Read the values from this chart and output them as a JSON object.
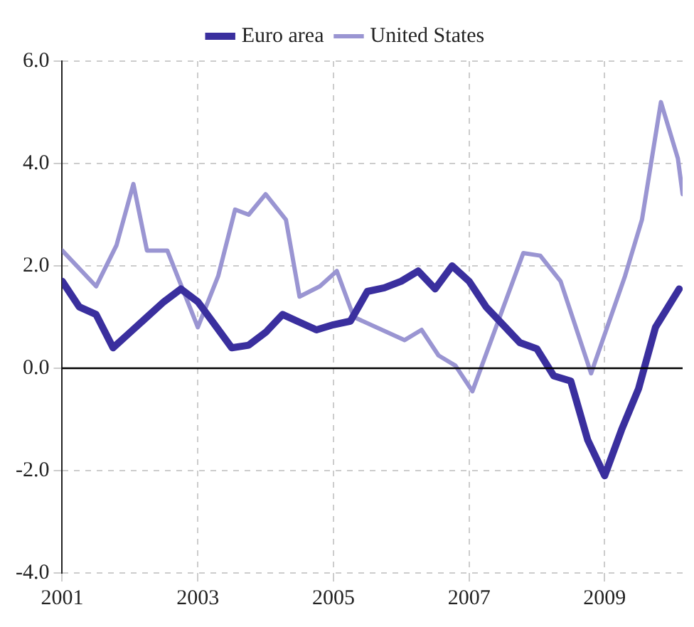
{
  "chart_data": {
    "type": "line",
    "legend": "top",
    "grid": true,
    "marker": "none",
    "line_style": "solid",
    "xlim": [
      2001,
      2010.15
    ],
    "xticks": [
      2001,
      2003,
      2005,
      2007,
      2009
    ],
    "ylim": [
      -4,
      6
    ],
    "yticks": [
      {
        "value": -4,
        "label": "-4.0"
      },
      {
        "value": -2,
        "label": "-2.0"
      },
      {
        "value": 0,
        "label": "0.0"
      },
      {
        "value": 2,
        "label": "2.0"
      },
      {
        "value": 4,
        "label": "4.0"
      },
      {
        "value": 6,
        "label": "6.0"
      }
    ],
    "ref_lines": [
      {
        "axis": "y",
        "value": 0,
        "color": "#000000"
      }
    ],
    "series": [
      {
        "name": "Euro area",
        "color": "#3a2f9e",
        "x": [
          2001,
          2001.25,
          2001.5,
          2001.75,
          2002,
          2002.25,
          2002.5,
          2002.75,
          2003,
          2003.25,
          2003.5,
          2003.75,
          2004,
          2004.25,
          2004.5,
          2004.75,
          2005,
          2005.25,
          2005.5,
          2005.75,
          2006,
          2006.25,
          2006.5,
          2006.75,
          2007,
          2007.25,
          2007.5,
          2007.75,
          2008,
          2008.25,
          2008.5,
          2008.75,
          2009,
          2009.25,
          2009.5,
          2009.75,
          2010.1
        ],
        "values": [
          1.7,
          1.2,
          1.05,
          0.4,
          0.7,
          1.0,
          1.3,
          1.55,
          1.3,
          0.85,
          0.4,
          0.45,
          0.7,
          1.05,
          0.9,
          0.75,
          0.85,
          0.92,
          1.5,
          1.57,
          1.7,
          1.9,
          1.55,
          2.0,
          1.7,
          1.2,
          0.85,
          0.5,
          0.38,
          -0.15,
          -0.25,
          -1.4,
          -2.1,
          -1.2,
          -0.4,
          0.8,
          1.55
        ]
      },
      {
        "name": "United States",
        "color": "#9a95d2",
        "x": [
          2001,
          2001.5,
          2001.8,
          2002.05,
          2002.25,
          2002.55,
          2003,
          2003.3,
          2003.55,
          2003.75,
          2004,
          2004.3,
          2004.5,
          2004.8,
          2005.05,
          2005.3,
          2006.05,
          2006.3,
          2006.55,
          2006.8,
          2007.05,
          2007.8,
          2008.05,
          2008.35,
          2008.8,
          2009.3,
          2009.55,
          2009.83,
          2010.08,
          2010.15
        ],
        "values": [
          2.3,
          1.6,
          2.4,
          3.6,
          2.3,
          2.3,
          0.8,
          1.8,
          3.1,
          3.0,
          3.4,
          2.9,
          1.4,
          1.6,
          1.9,
          1.0,
          0.55,
          0.75,
          0.25,
          0.05,
          -0.45,
          2.25,
          2.2,
          1.7,
          -0.1,
          1.8,
          2.9,
          5.2,
          4.1,
          3.4
        ]
      }
    ]
  }
}
